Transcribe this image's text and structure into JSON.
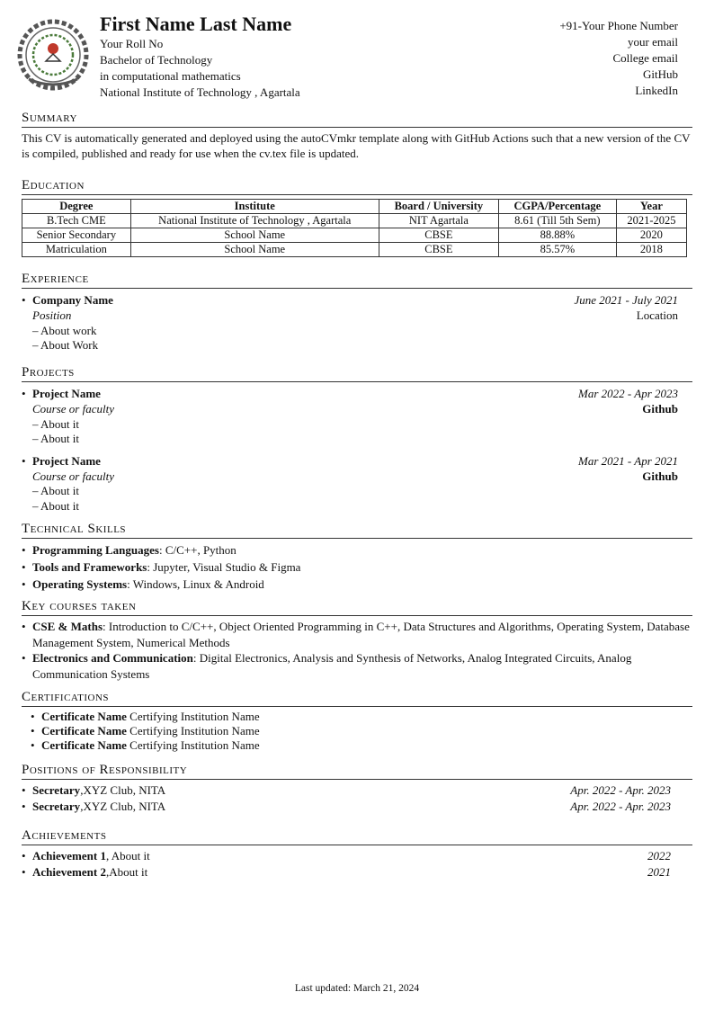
{
  "header": {
    "name": "First Name Last Name",
    "left_lines": [
      "Your Roll No",
      "Bachelor of Technology",
      "in computational mathematics",
      "National Institute of Technology , Agartala"
    ],
    "right_lines": [
      "+91-Your Phone Number",
      "your email",
      "College email",
      "GitHub",
      "LinkedIn"
    ],
    "logo_icon": "institute-seal-logo"
  },
  "summary": {
    "heading": "Summary",
    "text": "This CV is automatically generated and deployed using the autoCVmkr template along with GitHub Actions such that a new version of the CV is compiled, published and ready for use when the cv.tex file is updated."
  },
  "education": {
    "heading": "Education",
    "columns": [
      "Degree",
      "Institute",
      "Board / University",
      "CGPA/Percentage",
      "Year"
    ],
    "rows": [
      [
        "B.Tech CME",
        "National Institute of Technology , Agartala",
        "NIT Agartala",
        "8.61 (Till 5th Sem)",
        "2021-2025"
      ],
      [
        "Senior Secondary",
        "School Name",
        "CBSE",
        "88.88%",
        "2020"
      ],
      [
        "Matriculation",
        "School Name",
        "CBSE",
        "85.57%",
        "2018"
      ]
    ]
  },
  "experience": {
    "heading": "Experience",
    "items": [
      {
        "title": "Company Name",
        "date": "June 2021 - July 2021",
        "role": "Position",
        "location": "Location",
        "points": [
          "About work",
          "About Work"
        ]
      }
    ]
  },
  "projects": {
    "heading": "Projects",
    "items": [
      {
        "title": "Project Name",
        "date": "Mar 2022 - Apr 2023",
        "sub": "Course or faculty",
        "link": "Github",
        "points": [
          "About it",
          "About it"
        ]
      },
      {
        "title": "Project Name",
        "date": "Mar 2021 - Apr 2021",
        "sub": "Course or faculty",
        "link": "Github",
        "points": [
          "About it",
          "About it"
        ]
      }
    ]
  },
  "skills": {
    "heading": "Technical Skills",
    "items": [
      {
        "label": "Programming Languages",
        "value": ":  C/C++, Python"
      },
      {
        "label": "Tools and Frameworks",
        "value": ": Jupyter, Visual Studio & Figma"
      },
      {
        "label": "Operating Systems",
        "value": ": Windows, Linux & Android"
      }
    ]
  },
  "courses": {
    "heading": "Key courses taken",
    "items": [
      {
        "label": "CSE & Maths",
        "value": ": Introduction to C/C++, Object Oriented Programming in C++, Data Structures and Algorithms, Operating System, Database Management System, Numerical Methods"
      },
      {
        "label": "Electronics and Communication",
        "value": ": Digital Electronics, Analysis and Synthesis of Networks, Analog Integrated Circuits, Analog Communication Systems"
      }
    ]
  },
  "certifications": {
    "heading": "Certifications",
    "items": [
      {
        "name": "Certificate Name",
        "inst": " Certifying Institution Name"
      },
      {
        "name": "Certificate Name",
        "inst": " Certifying Institution Name"
      },
      {
        "name": "Certificate Name",
        "inst": " Certifying Institution Name"
      }
    ]
  },
  "positions": {
    "heading": "Positions of Responsibility",
    "items": [
      {
        "title": "Secretary",
        "org": ",XYZ Club, NITA",
        "date": "Apr. 2022 - Apr. 2023"
      },
      {
        "title": "Secretary",
        "org": ",XYZ Club, NITA",
        "date": "Apr. 2022 - Apr. 2023"
      }
    ]
  },
  "achievements": {
    "heading": "Achievements",
    "items": [
      {
        "title": "Achievement 1",
        "text": ", About it",
        "year": "2022"
      },
      {
        "title": "Achievement 2",
        "text": ",About it",
        "year": "2021"
      }
    ]
  },
  "footer": "Last updated: March 21, 2024"
}
